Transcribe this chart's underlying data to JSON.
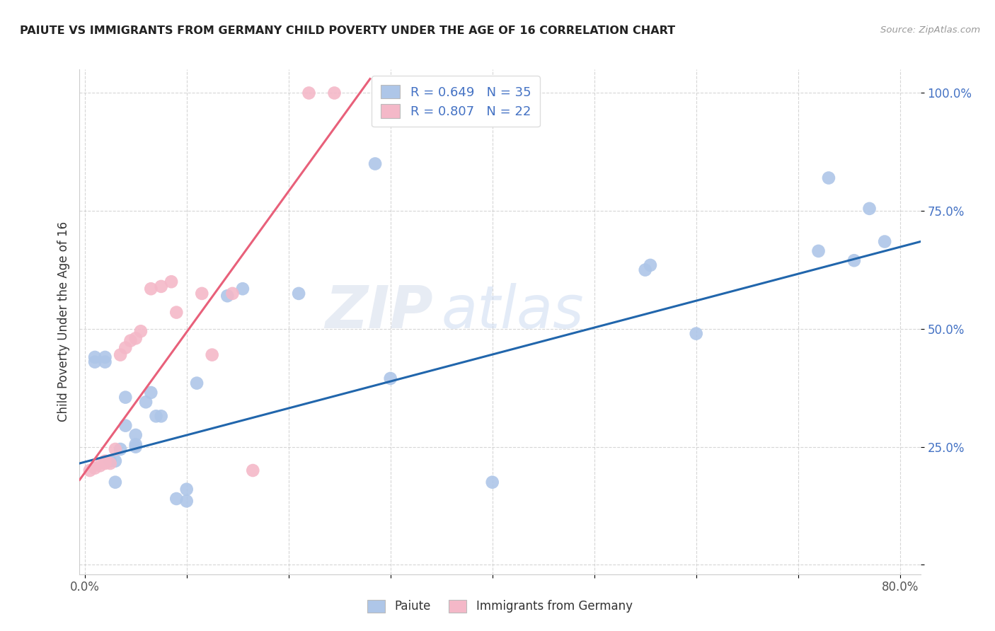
{
  "title": "PAIUTE VS IMMIGRANTS FROM GERMANY CHILD POVERTY UNDER THE AGE OF 16 CORRELATION CHART",
  "source": "Source: ZipAtlas.com",
  "ylabel": "Child Poverty Under the Age of 16",
  "xlim": [
    -0.005,
    0.82
  ],
  "ylim": [
    -0.02,
    1.05
  ],
  "xtick_positions": [
    0.0,
    0.1,
    0.2,
    0.3,
    0.4,
    0.5,
    0.6,
    0.7,
    0.8
  ],
  "xticklabels": [
    "0.0%",
    "",
    "",
    "",
    "",
    "",
    "",
    "",
    "80.0%"
  ],
  "ytick_positions": [
    0.0,
    0.25,
    0.5,
    0.75,
    1.0
  ],
  "yticklabels": [
    "",
    "25.0%",
    "50.0%",
    "75.0%",
    "100.0%"
  ],
  "legend_paiute_R": "0.649",
  "legend_paiute_N": "35",
  "legend_germany_R": "0.807",
  "legend_germany_N": "22",
  "paiute_color": "#aec6e8",
  "germany_color": "#f4b8c8",
  "paiute_line_color": "#2166ac",
  "germany_line_color": "#e8607a",
  "paiute_x": [
    0.01,
    0.01,
    0.02,
    0.02,
    0.025,
    0.03,
    0.03,
    0.035,
    0.04,
    0.04,
    0.05,
    0.05,
    0.05,
    0.06,
    0.065,
    0.07,
    0.075,
    0.09,
    0.1,
    0.1,
    0.11,
    0.14,
    0.155,
    0.21,
    0.285,
    0.3,
    0.4,
    0.55,
    0.555,
    0.6,
    0.72,
    0.73,
    0.755,
    0.77,
    0.785
  ],
  "paiute_y": [
    0.43,
    0.44,
    0.44,
    0.43,
    0.22,
    0.175,
    0.22,
    0.245,
    0.355,
    0.295,
    0.25,
    0.255,
    0.275,
    0.345,
    0.365,
    0.315,
    0.315,
    0.14,
    0.135,
    0.16,
    0.385,
    0.57,
    0.585,
    0.575,
    0.85,
    0.395,
    0.175,
    0.625,
    0.635,
    0.49,
    0.665,
    0.82,
    0.645,
    0.755,
    0.685
  ],
  "germany_x": [
    0.005,
    0.01,
    0.015,
    0.02,
    0.02,
    0.025,
    0.03,
    0.035,
    0.04,
    0.045,
    0.05,
    0.055,
    0.065,
    0.075,
    0.085,
    0.09,
    0.115,
    0.125,
    0.145,
    0.165,
    0.22,
    0.245
  ],
  "germany_y": [
    0.2,
    0.205,
    0.21,
    0.215,
    0.22,
    0.215,
    0.245,
    0.445,
    0.46,
    0.475,
    0.48,
    0.495,
    0.585,
    0.59,
    0.6,
    0.535,
    0.575,
    0.445,
    0.575,
    0.2,
    1.0,
    1.0
  ],
  "paiute_line_x": [
    -0.005,
    0.82
  ],
  "paiute_line_y": [
    0.215,
    0.685
  ],
  "germany_line_x": [
    -0.005,
    0.28
  ],
  "germany_line_y": [
    0.18,
    1.03
  ],
  "watermark_zip": "ZIP",
  "watermark_atlas": "atlas"
}
